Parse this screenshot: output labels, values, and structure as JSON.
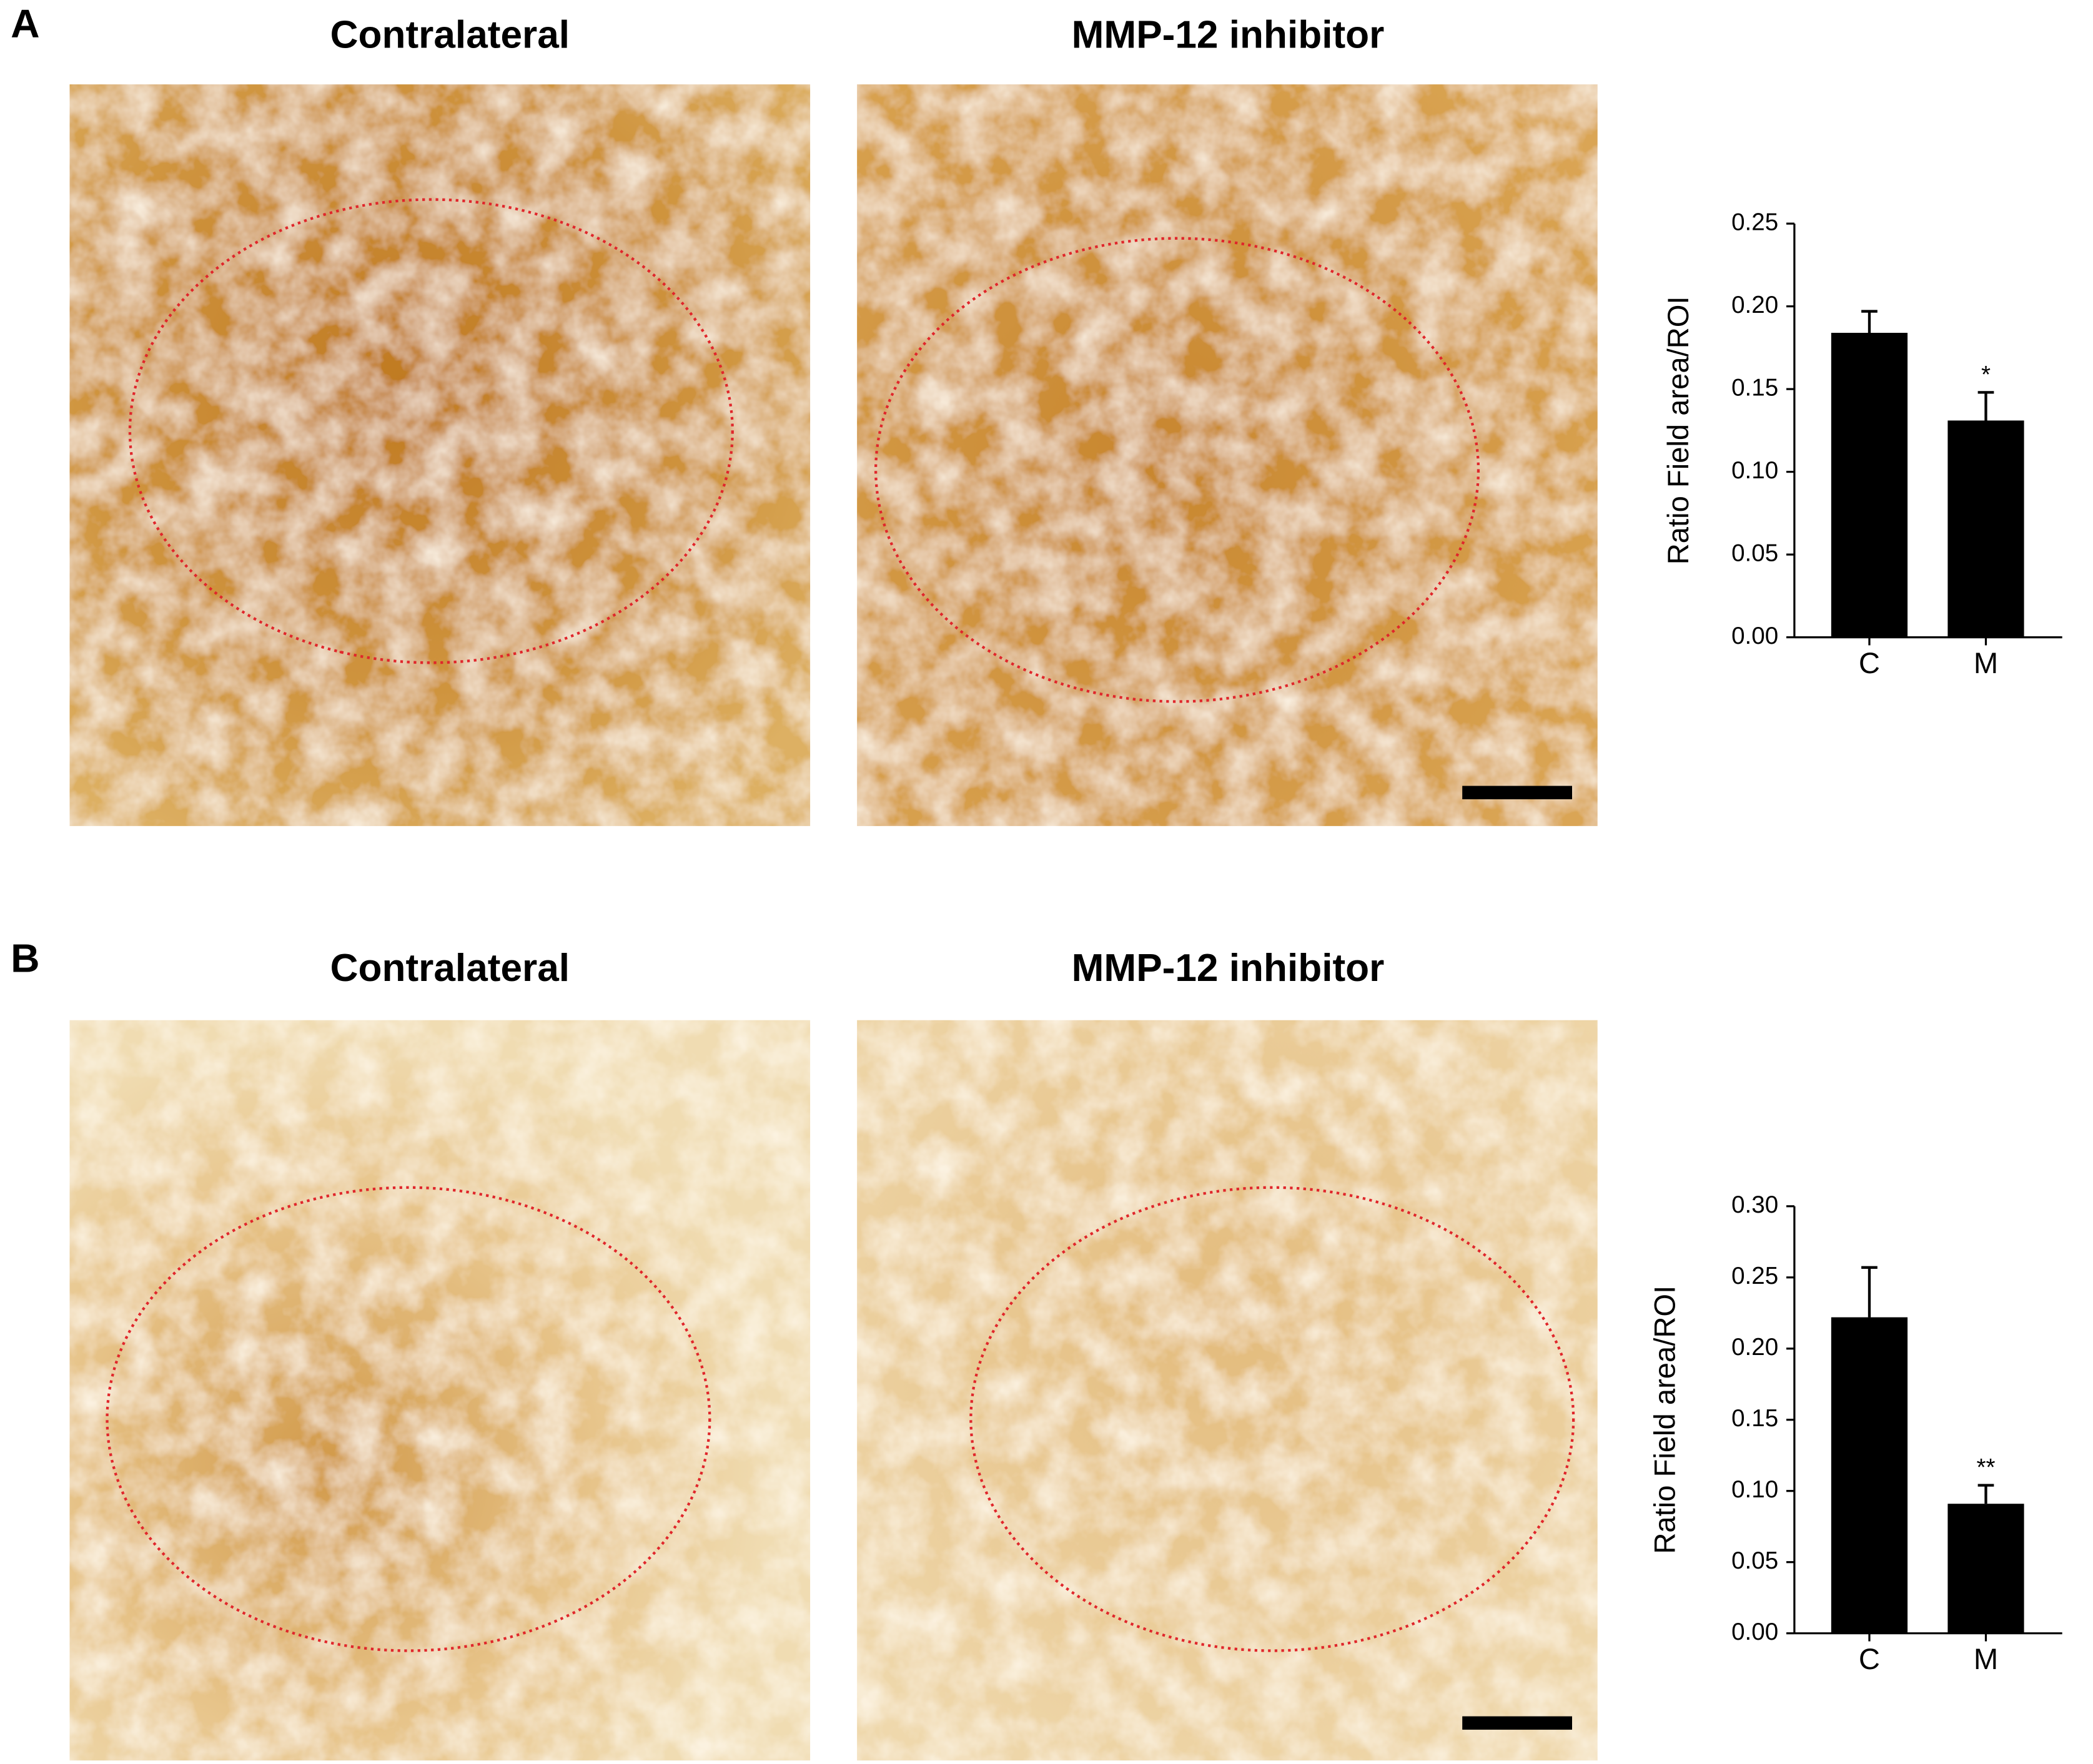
{
  "panels": [
    {
      "label": "A",
      "image_titles": [
        "Contralateral",
        "MMP-12 inhibitor"
      ]
    },
    {
      "label": "B",
      "image_titles": [
        "Contralateral",
        "MMP-12 inhibitor"
      ]
    }
  ],
  "chart_data": [
    {
      "type": "bar",
      "y_label": "Ratio Field area/ROI",
      "categories": [
        "C",
        "M"
      ],
      "series": [
        {
          "color": "#000000",
          "values": [
            0.184,
            0.131
          ],
          "errors": [
            0.013,
            0.017
          ]
        }
      ],
      "significance": [
        null,
        "*"
      ],
      "ylim": [
        0,
        0.25
      ],
      "yticks": [
        {
          "value": 0,
          "label": "0.00"
        },
        {
          "value": 0.05,
          "label": "0.05"
        },
        {
          "value": 0.1,
          "label": "0.10"
        },
        {
          "value": 0.15,
          "label": "0.15"
        },
        {
          "value": 0.2,
          "label": "0.20"
        },
        {
          "value": 0.25,
          "label": "0.25"
        }
      ]
    },
    {
      "type": "bar",
      "y_label": "Ratio Field area/ROI",
      "categories": [
        "C",
        "M"
      ],
      "series": [
        {
          "color": "#000000",
          "values": [
            0.222,
            0.091
          ],
          "errors": [
            0.035,
            0.013
          ]
        }
      ],
      "significance": [
        null,
        "**"
      ],
      "ylim": [
        0,
        0.3
      ],
      "yticks": [
        {
          "value": 0,
          "label": "0.00"
        },
        {
          "value": 0.05,
          "label": "0.05"
        },
        {
          "value": 0.1,
          "label": "0.10"
        },
        {
          "value": 0.15,
          "label": "0.15"
        },
        {
          "value": 0.2,
          "label": "0.20"
        },
        {
          "value": 0.25,
          "label": "0.25"
        },
        {
          "value": 0.3,
          "label": "0.30"
        }
      ]
    }
  ]
}
